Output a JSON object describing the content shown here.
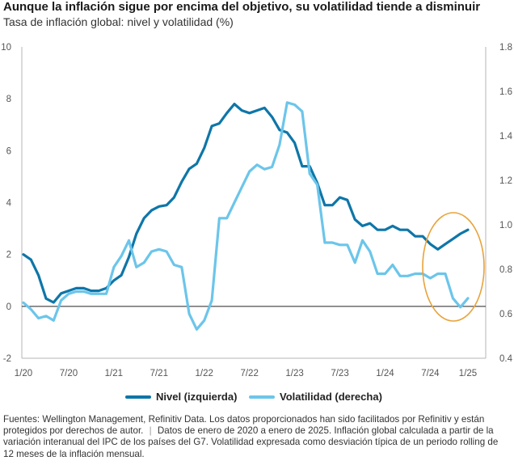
{
  "title": "Aunque la inflación sigue por encima del objetivo, su volatilidad tiende a disminuir",
  "subtitle": "Tasa de inflación global: nivel y volatilidad (%)",
  "legend": {
    "nivel": "Nivel (izquierda)",
    "volatilidad": "Volatilidad (derecha)"
  },
  "footer": {
    "sources": "Fuentes: Wellington Management, Refinitiv Data. Los datos proporcionados han sido facilitados por Refinitiv y están protegidos por derechos de autor.",
    "separator": "|",
    "notes": "Datos de enero de 2020 a enero de 2025. Inflación global calculada a partir de la variación interanual del IPC de los países del G7. Volatilidad expresada como desviación típica de un periodo rolling de 12 meses de la inflación mensual."
  },
  "colors": {
    "nivel": "#0e76a8",
    "volatilidad": "#6cc5ea",
    "highlight": "#e8a33a",
    "zero_line": "#222222",
    "axis_line": "#b5b5b5"
  },
  "chart_data": {
    "type": "line",
    "x_ticks": [
      "1/20",
      "7/20",
      "1/21",
      "7/21",
      "1/22",
      "7/22",
      "1/23",
      "7/23",
      "1/24",
      "7/24",
      "1/25"
    ],
    "y_left": {
      "ticks": [
        "-2",
        "0",
        "2",
        "4",
        "6",
        "8",
        "10"
      ],
      "range": [
        -2,
        10
      ]
    },
    "y_right": {
      "ticks": [
        "0.4",
        "0.6",
        "0.8",
        "1.0",
        "1.2",
        "1.4",
        "1.6",
        "1.8"
      ],
      "range": [
        0.4,
        1.8
      ]
    },
    "annotation": "highlight ellipse around late 2024 to 1/25",
    "series": [
      {
        "name": "Nivel (izquierda)",
        "axis": "left",
        "color": "#0e76a8",
        "values": [
          2.0,
          1.8,
          1.2,
          0.3,
          0.15,
          0.5,
          0.6,
          0.7,
          0.7,
          0.6,
          0.6,
          0.7,
          1.0,
          1.2,
          1.9,
          2.8,
          3.4,
          3.7,
          3.85,
          3.9,
          4.2,
          4.8,
          5.3,
          5.5,
          6.1,
          6.95,
          7.05,
          7.45,
          7.8,
          7.55,
          7.45,
          7.55,
          7.65,
          7.3,
          6.8,
          6.7,
          6.3,
          5.4,
          5.4,
          4.75,
          3.9,
          3.9,
          4.2,
          4.1,
          3.35,
          3.1,
          3.2,
          2.95,
          2.95,
          3.1,
          2.95,
          2.95,
          2.7,
          2.7,
          2.4,
          2.2,
          2.4,
          2.6,
          2.8,
          2.95
        ]
      },
      {
        "name": "Volatilidad (derecha)",
        "axis": "right",
        "color": "#6cc5ea",
        "values": [
          0.65,
          0.62,
          0.58,
          0.59,
          0.57,
          0.66,
          0.69,
          0.7,
          0.7,
          0.69,
          0.69,
          0.69,
          0.81,
          0.86,
          0.93,
          0.81,
          0.83,
          0.88,
          0.89,
          0.88,
          0.82,
          0.81,
          0.6,
          0.53,
          0.57,
          0.66,
          1.03,
          1.03,
          1.1,
          1.17,
          1.24,
          1.27,
          1.25,
          1.26,
          1.36,
          1.55,
          1.54,
          1.51,
          1.23,
          1.18,
          0.92,
          0.92,
          0.91,
          0.91,
          0.83,
          0.93,
          0.88,
          0.78,
          0.78,
          0.82,
          0.77,
          0.77,
          0.78,
          0.78,
          0.76,
          0.78,
          0.78,
          0.67,
          0.63,
          0.67
        ]
      }
    ]
  }
}
